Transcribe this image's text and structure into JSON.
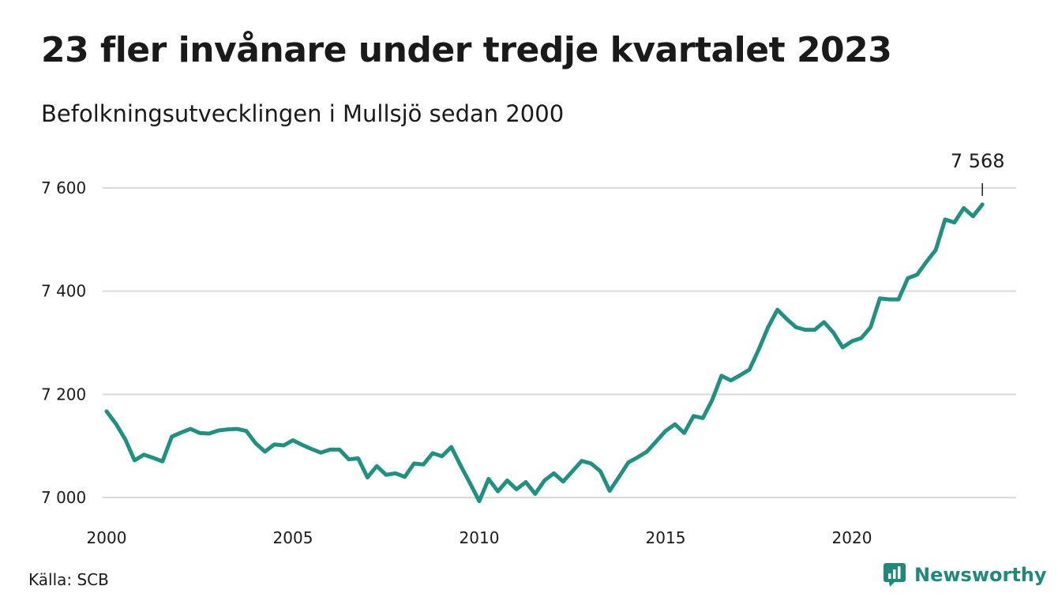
{
  "title": "23 fler invånare under tredje kvartalet 2023",
  "subtitle": "Befolkningsutvecklingen i Mullsjö sedan 2000",
  "source": "Källa: SCB",
  "brand": {
    "name": "Newsworthy",
    "icon": "newsworthy-logo-icon",
    "color": "#1f8a7a"
  },
  "chart_data": {
    "type": "line",
    "title": "23 fler invånare under tredje kvartalet 2023",
    "subtitle": "Befolkningsutvecklingen i Mullsjö sedan 2000",
    "xlabel": "",
    "ylabel": "",
    "grid": true,
    "line_color": "#1f9180",
    "x_ticks": [
      2000,
      2005,
      2010,
      2015,
      2020
    ],
    "y_ticks": [
      7000,
      7200,
      7400,
      7600
    ],
    "y_tick_labels": [
      "7 000",
      "7 200",
      "7 400",
      "7 600"
    ],
    "xlim": [
      2000,
      2024
    ],
    "ylim": [
      6975,
      7650
    ],
    "last_value_label": "7 568",
    "series": [
      {
        "x": [
          2000.0,
          2000.25,
          2000.5,
          2000.75,
          2001.0,
          2001.25,
          2001.5,
          2001.75,
          2002.0,
          2002.25,
          2002.5,
          2002.75,
          2003.0,
          2003.25,
          2003.5,
          2003.75,
          2004.0,
          2004.25,
          2004.5,
          2004.75,
          2005.0,
          2005.25,
          2005.5,
          2005.75,
          2006.0,
          2006.25,
          2006.5,
          2006.75,
          2007.0,
          2007.25,
          2007.5,
          2007.75,
          2008.0,
          2008.25,
          2008.5,
          2008.75,
          2009.0,
          2009.25,
          2009.5,
          2009.75,
          2010.0,
          2010.25,
          2010.5,
          2010.75,
          2011.0,
          2011.25,
          2011.5,
          2011.75,
          2012.0,
          2012.25,
          2012.5,
          2012.75,
          2013.0,
          2013.25,
          2013.5,
          2013.75,
          2014.0,
          2014.25,
          2014.5,
          2014.75,
          2015.0,
          2015.25,
          2015.5,
          2015.75,
          2016.0,
          2016.25,
          2016.5,
          2016.75,
          2017.0,
          2017.25,
          2017.5,
          2017.75,
          2018.0,
          2018.25,
          2018.5,
          2018.75,
          2019.0,
          2019.25,
          2019.5,
          2019.75,
          2020.0,
          2020.25,
          2020.5,
          2020.75,
          2021.0,
          2021.25,
          2021.5,
          2021.75,
          2022.0,
          2022.25,
          2022.5,
          2022.75,
          2023.0,
          2023.25,
          2023.5
        ],
        "values": [
          7167,
          7143,
          7113,
          7072,
          7083,
          7077,
          7070,
          7118,
          7126,
          7133,
          7125,
          7124,
          7130,
          7132,
          7133,
          7129,
          7105,
          7089,
          7103,
          7101,
          7111,
          7102,
          7094,
          7087,
          7093,
          7093,
          7074,
          7076,
          7039,
          7061,
          7044,
          7047,
          7040,
          7066,
          7064,
          7086,
          7080,
          7098,
          7062,
          7028,
          6993,
          7036,
          7012,
          7033,
          7016,
          7030,
          7007,
          7033,
          7047,
          7031,
          7051,
          7071,
          7066,
          7051,
          7013,
          7040,
          7068,
          7078,
          7089,
          7109,
          7129,
          7142,
          7125,
          7158,
          7154,
          7189,
          7236,
          7227,
          7237,
          7248,
          7287,
          7330,
          7364,
          7346,
          7330,
          7325,
          7325,
          7340,
          7320,
          7291,
          7303,
          7309,
          7330,
          7386,
          7384,
          7384,
          7425,
          7432,
          7457,
          7480,
          7539,
          7533,
          7561,
          7545,
          7568
        ]
      }
    ]
  }
}
